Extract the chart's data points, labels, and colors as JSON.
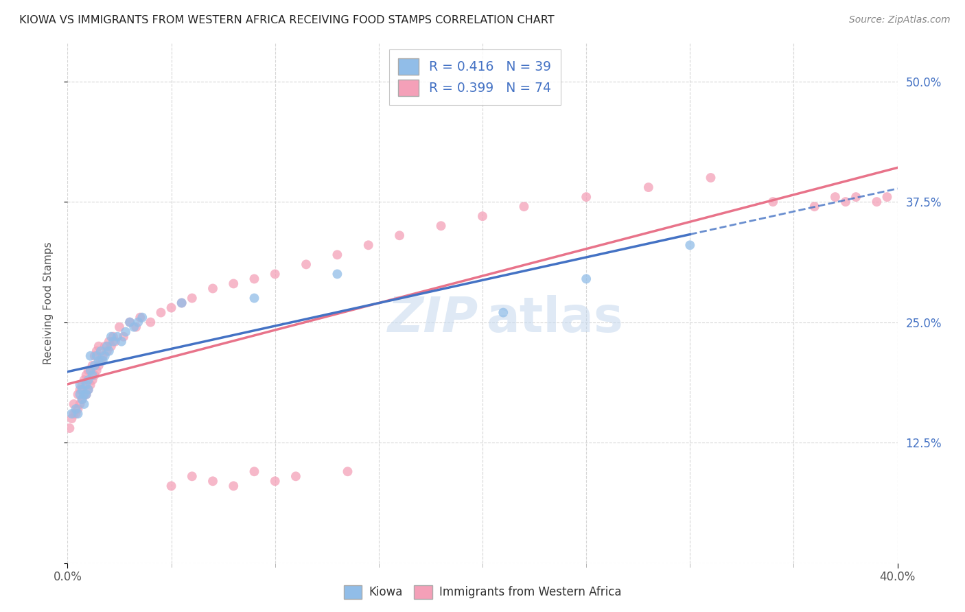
{
  "title": "KIOWA VS IMMIGRANTS FROM WESTERN AFRICA RECEIVING FOOD STAMPS CORRELATION CHART",
  "source": "Source: ZipAtlas.com",
  "ylabel": "Receiving Food Stamps",
  "xlim": [
    0.0,
    0.4
  ],
  "ylim": [
    0.0,
    0.54
  ],
  "xtick_vals": [
    0.0,
    0.05,
    0.1,
    0.15,
    0.2,
    0.25,
    0.3,
    0.35,
    0.4
  ],
  "ytick_vals": [
    0.0,
    0.125,
    0.25,
    0.375,
    0.5
  ],
  "background_color": "#ffffff",
  "grid_color": "#cccccc",
  "color_kiowa": "#91bde8",
  "color_immigrants": "#f4a0b8",
  "color_blue_line": "#4472c4",
  "color_pink_line": "#e8738a",
  "color_blue_text": "#4472c4",
  "color_right_tick": "#4472c4",
  "watermark_color": "#c5d8ee",
  "kiowa_x": [
    0.002,
    0.004,
    0.005,
    0.006,
    0.006,
    0.007,
    0.007,
    0.008,
    0.008,
    0.009,
    0.009,
    0.01,
    0.01,
    0.011,
    0.011,
    0.012,
    0.013,
    0.014,
    0.015,
    0.016,
    0.017,
    0.018,
    0.019,
    0.02,
    0.021,
    0.022,
    0.024,
    0.026,
    0.028,
    0.03,
    0.032,
    0.034,
    0.036,
    0.055,
    0.09,
    0.13,
    0.21,
    0.25,
    0.3
  ],
  "kiowa_y": [
    0.155,
    0.16,
    0.155,
    0.175,
    0.185,
    0.17,
    0.18,
    0.165,
    0.175,
    0.175,
    0.185,
    0.18,
    0.19,
    0.2,
    0.215,
    0.195,
    0.205,
    0.215,
    0.21,
    0.22,
    0.21,
    0.215,
    0.225,
    0.22,
    0.235,
    0.23,
    0.235,
    0.23,
    0.24,
    0.25,
    0.245,
    0.25,
    0.255,
    0.27,
    0.275,
    0.3,
    0.26,
    0.295,
    0.33
  ],
  "immigrants_x": [
    0.001,
    0.002,
    0.003,
    0.003,
    0.004,
    0.005,
    0.005,
    0.006,
    0.006,
    0.007,
    0.007,
    0.008,
    0.008,
    0.009,
    0.009,
    0.01,
    0.01,
    0.011,
    0.011,
    0.012,
    0.012,
    0.013,
    0.013,
    0.014,
    0.014,
    0.015,
    0.015,
    0.016,
    0.017,
    0.018,
    0.019,
    0.02,
    0.021,
    0.022,
    0.023,
    0.025,
    0.027,
    0.03,
    0.033,
    0.035,
    0.04,
    0.045,
    0.05,
    0.055,
    0.06,
    0.07,
    0.08,
    0.09,
    0.1,
    0.115,
    0.13,
    0.145,
    0.16,
    0.18,
    0.2,
    0.22,
    0.25,
    0.28,
    0.31,
    0.34,
    0.36,
    0.37,
    0.375,
    0.38,
    0.39,
    0.395,
    0.135,
    0.05,
    0.06,
    0.07,
    0.08,
    0.09,
    0.1,
    0.11
  ],
  "immigrants_y": [
    0.14,
    0.15,
    0.155,
    0.165,
    0.155,
    0.16,
    0.175,
    0.165,
    0.18,
    0.17,
    0.185,
    0.175,
    0.19,
    0.175,
    0.195,
    0.18,
    0.2,
    0.185,
    0.2,
    0.19,
    0.205,
    0.195,
    0.215,
    0.2,
    0.22,
    0.205,
    0.225,
    0.21,
    0.215,
    0.225,
    0.22,
    0.23,
    0.225,
    0.235,
    0.23,
    0.245,
    0.235,
    0.25,
    0.245,
    0.255,
    0.25,
    0.26,
    0.265,
    0.27,
    0.275,
    0.285,
    0.29,
    0.295,
    0.3,
    0.31,
    0.32,
    0.33,
    0.34,
    0.35,
    0.36,
    0.37,
    0.38,
    0.39,
    0.4,
    0.375,
    0.37,
    0.38,
    0.375,
    0.38,
    0.375,
    0.38,
    0.095,
    0.08,
    0.09,
    0.085,
    0.08,
    0.095,
    0.085,
    0.09
  ],
  "legend_items": [
    {
      "label": "R = 0.416   N = 39",
      "color": "#91bde8"
    },
    {
      "label": "R = 0.399   N = 74",
      "color": "#f4a0b8"
    }
  ]
}
